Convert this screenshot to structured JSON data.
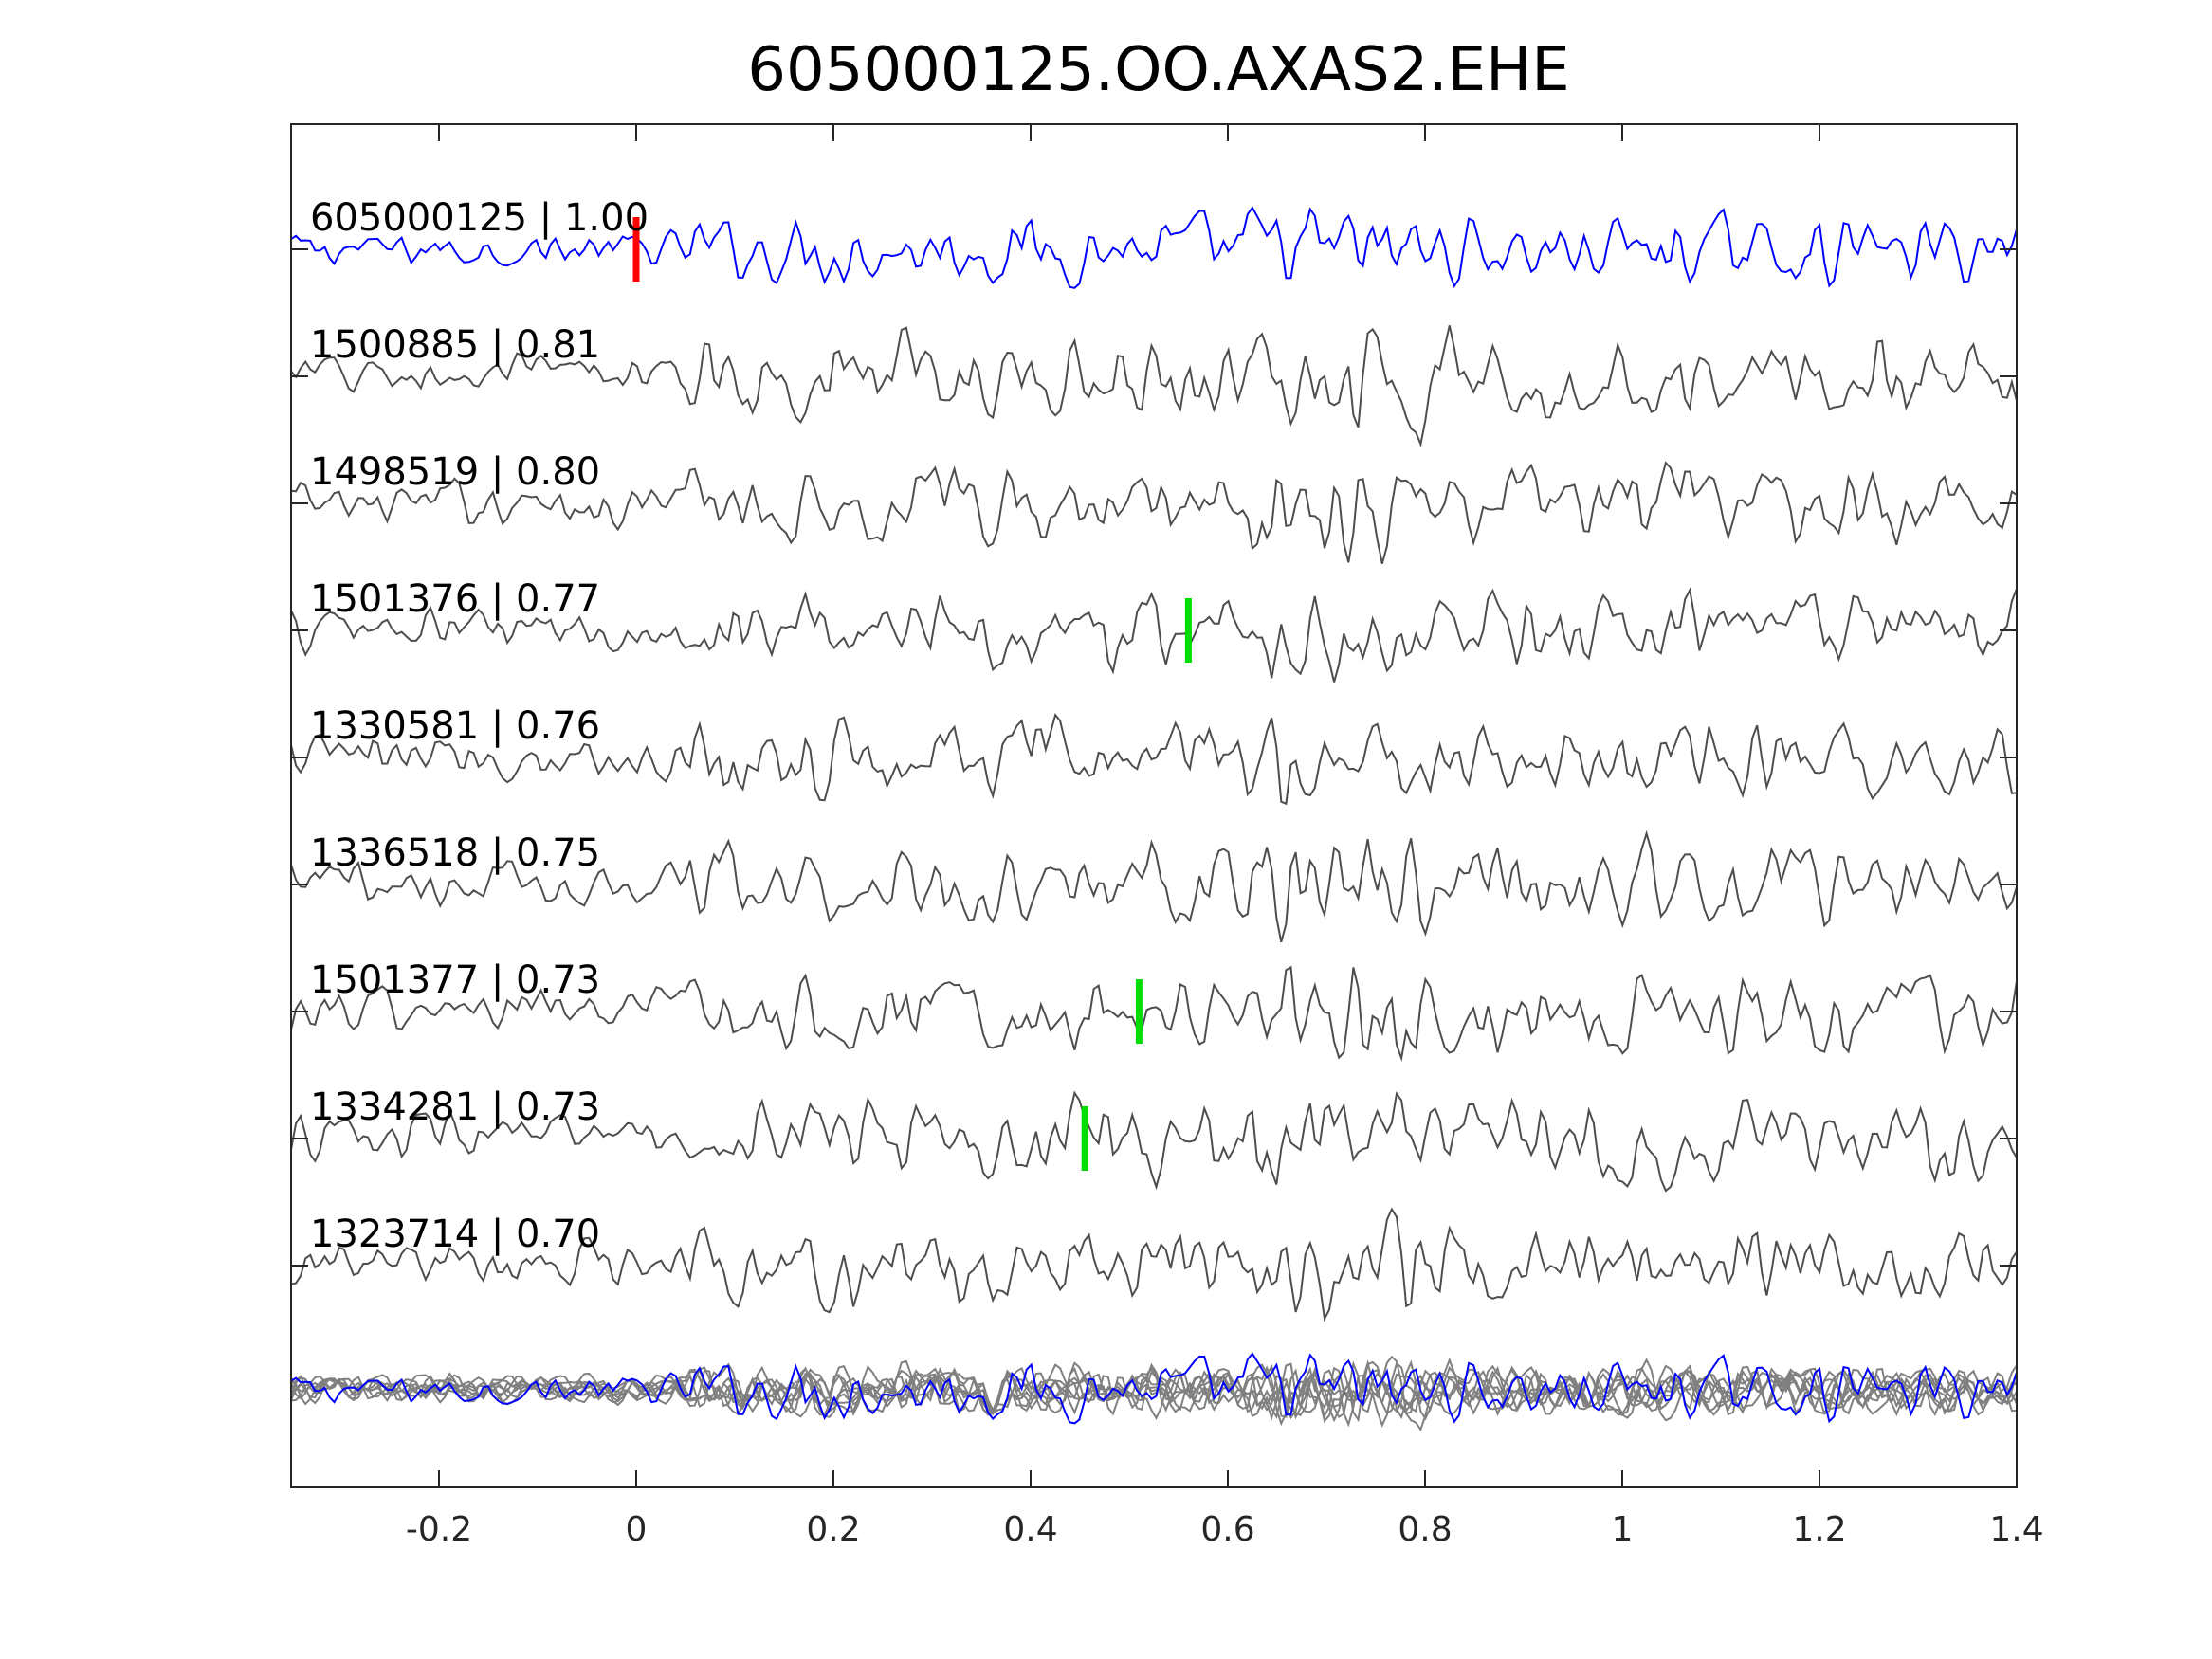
{
  "chart_data": {
    "type": "line",
    "title": "605000125.OO.AXAS2.EHE",
    "xlabel": "",
    "ylabel": "",
    "xlim": [
      -0.35,
      1.4
    ],
    "x_ticks": [
      -0.2,
      0,
      0.2,
      0.4,
      0.6,
      0.8,
      1,
      1.2,
      1.4
    ],
    "x_tick_labels": [
      "-0.2",
      "0",
      "0.2",
      "0.4",
      "0.6",
      "0.8",
      "1",
      "1.2",
      "1.4"
    ],
    "grid": false,
    "box": true,
    "colors": {
      "reference": "#0000ff",
      "trace": "#4d4d4d",
      "stack": "#808080",
      "reference_pick": "#ff0000",
      "match_pick": "#00dd00",
      "axis": "#262626"
    },
    "series": [
      {
        "label": "605000125 | 1.00",
        "role": "reference",
        "pick": 0.0
      },
      {
        "label": "1500885 | 0.81",
        "role": "match"
      },
      {
        "label": "1498519 | 0.80",
        "role": "match"
      },
      {
        "label": "1501376 | 0.77",
        "role": "match",
        "pick": 0.56
      },
      {
        "label": "1330581 | 0.76",
        "role": "match"
      },
      {
        "label": "1336518 | 0.75",
        "role": "match"
      },
      {
        "label": "1501377 | 0.73",
        "role": "match",
        "pick": 0.51
      },
      {
        "label": "1334281 | 0.73",
        "role": "match",
        "pick": 0.455
      },
      {
        "label": "1323714 | 0.70",
        "role": "match"
      }
    ],
    "overlay": {
      "description_hidden": true,
      "includes_reference": true
    }
  }
}
